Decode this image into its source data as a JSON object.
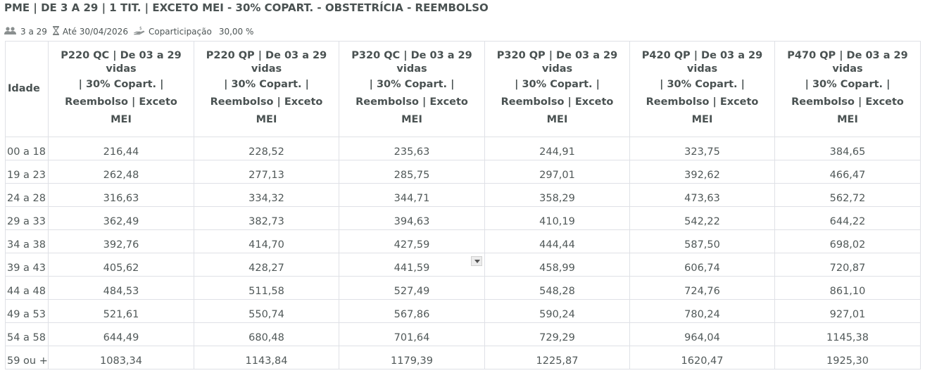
{
  "title": "PME | DE 3 A 29 | 1 TIT. | EXCETO MEI - 30% COPART. - OBSTETRÍCIA - REEMBOLSO",
  "meta": {
    "lives": {
      "icon": "users-icon",
      "text": "3 a 29"
    },
    "validity": {
      "icon": "hourglass-icon",
      "text": "Até 30/04/2026"
    },
    "copay": {
      "icon": "hand-money-icon",
      "label": "Coparticipação",
      "value": "30,00 %"
    }
  },
  "table": {
    "age_header": "Idade",
    "columns": [
      {
        "l1": "P220 QC | De 03 a 29 vidas",
        "l2": "| 30% Copart. |",
        "l3": "Reembolso | Exceto",
        "l4": "MEI"
      },
      {
        "l1": "P220 QP | De 03 a 29 vidas",
        "l2": "| 30% Copart. |",
        "l3": "Reembolso | Exceto",
        "l4": "MEI"
      },
      {
        "l1": "P320 QC | De 03 a 29 vidas",
        "l2": "| 30% Copart. |",
        "l3": "Reembolso | Exceto",
        "l4": "MEI"
      },
      {
        "l1": "P320 QP | De 03 a 29 vidas",
        "l2": "| 30% Copart. |",
        "l3": "Reembolso | Exceto",
        "l4": "MEI"
      },
      {
        "l1": "P420 QP | De 03 a 29 vidas",
        "l2": "| 30% Copart. |",
        "l3": "Reembolso | Exceto",
        "l4": "MEI"
      },
      {
        "l1": "P470 QP | De 03 a 29 vidas",
        "l2": "| 30% Copart. |",
        "l3": "Reembolso | Exceto",
        "l4": "MEI"
      }
    ],
    "rows": [
      {
        "age": "00 a 18",
        "v": [
          "216,44",
          "228,52",
          "235,63",
          "244,91",
          "323,75",
          "384,65"
        ]
      },
      {
        "age": "19 a 23",
        "v": [
          "262,48",
          "277,13",
          "285,75",
          "297,01",
          "392,62",
          "466,47"
        ]
      },
      {
        "age": "24 a 28",
        "v": [
          "316,63",
          "334,32",
          "344,71",
          "358,29",
          "473,63",
          "562,72"
        ]
      },
      {
        "age": "29 a 33",
        "v": [
          "362,49",
          "382,73",
          "394,63",
          "410,19",
          "542,22",
          "644,22"
        ]
      },
      {
        "age": "34 a 38",
        "v": [
          "392,76",
          "414,70",
          "427,59",
          "444,44",
          "587,50",
          "698,02"
        ]
      },
      {
        "age": "39 a 43",
        "v": [
          "405,62",
          "428,27",
          "441,59",
          "458,99",
          "606,74",
          "720,87"
        ]
      },
      {
        "age": "44 a 48",
        "v": [
          "484,53",
          "511,58",
          "527,49",
          "548,28",
          "724,76",
          "861,10"
        ]
      },
      {
        "age": "49 a 53",
        "v": [
          "521,61",
          "550,74",
          "567,86",
          "590,24",
          "780,24",
          "927,01"
        ]
      },
      {
        "age": "54 a 58",
        "v": [
          "644,49",
          "680,48",
          "701,64",
          "729,29",
          "964,04",
          "1145,38"
        ]
      },
      {
        "age": "59 ou +",
        "v": [
          "1083,34",
          "1143,84",
          "1179,39",
          "1225,87",
          "1620,47",
          "1925,30"
        ]
      }
    ]
  }
}
